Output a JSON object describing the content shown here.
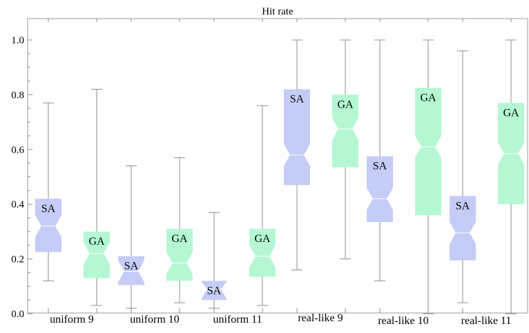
{
  "chart_data": {
    "type": "box",
    "title": "Hit rate",
    "ylim": [
      -0.02,
      1.07
    ],
    "yticks": [
      0.0,
      0.2,
      0.4,
      0.6,
      0.8,
      1.0
    ],
    "ytick_labels": [
      "0.0",
      "0.2",
      "0.4",
      "0.6",
      "0.8",
      "1.0"
    ],
    "groups": [
      "uniform 9",
      "uniform 10",
      "uniform 11",
      "real-like 9",
      "real-like 10",
      "real-like 11"
    ],
    "series": [
      {
        "name": "SA",
        "color": "#c5ccf5",
        "boxes": [
          {
            "min": 0.12,
            "q1": 0.225,
            "median": 0.32,
            "q3": 0.42,
            "max": 0.77
          },
          {
            "min": 0.02,
            "q1": 0.105,
            "median": 0.155,
            "q3": 0.21,
            "max": 0.54
          },
          {
            "min": 0.02,
            "q1": 0.05,
            "median": 0.09,
            "q3": 0.12,
            "max": 0.37
          },
          {
            "min": 0.16,
            "q1": 0.47,
            "median": 0.58,
            "q3": 0.82,
            "max": 1.0
          },
          {
            "min": 0.12,
            "q1": 0.335,
            "median": 0.42,
            "q3": 0.575,
            "max": 1.0
          },
          {
            "min": 0.04,
            "q1": 0.195,
            "median": 0.295,
            "q3": 0.43,
            "max": 0.96
          }
        ]
      },
      {
        "name": "GA",
        "color": "#b4f7d2",
        "boxes": [
          {
            "min": 0.03,
            "q1": 0.13,
            "median": 0.22,
            "q3": 0.3,
            "max": 0.82
          },
          {
            "min": 0.04,
            "q1": 0.12,
            "median": 0.185,
            "q3": 0.31,
            "max": 0.57
          },
          {
            "min": 0.03,
            "q1": 0.135,
            "median": 0.21,
            "q3": 0.31,
            "max": 0.76
          },
          {
            "min": 0.2,
            "q1": 0.535,
            "median": 0.675,
            "q3": 0.8,
            "max": 1.0
          },
          {
            "min": 0.0,
            "q1": 0.36,
            "median": 0.61,
            "q3": 0.825,
            "max": 1.0
          },
          {
            "min": 0.0,
            "q1": 0.4,
            "median": 0.585,
            "q3": 0.77,
            "max": 1.0
          }
        ]
      }
    ],
    "grid": false,
    "legend": "none"
  }
}
